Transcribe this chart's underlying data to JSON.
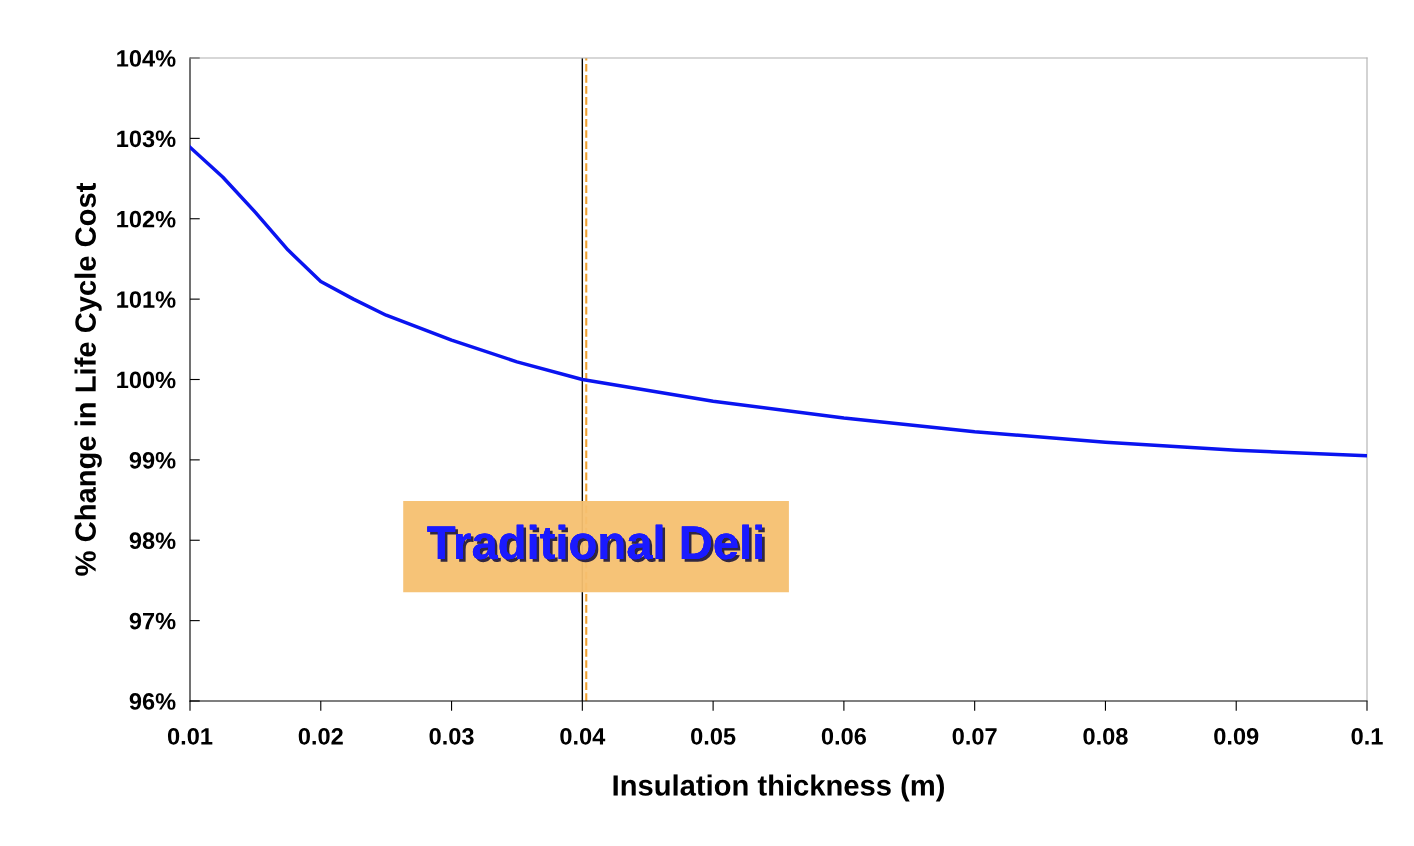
{
  "chart_data": {
    "type": "line",
    "xlabel": "Insulation thickness (m)",
    "ylabel": "% Change in Life Cycle Cost",
    "x": [
      0.01,
      0.0125,
      0.015,
      0.0175,
      0.02,
      0.0225,
      0.025,
      0.03,
      0.035,
      0.04,
      0.05,
      0.06,
      0.07,
      0.08,
      0.09,
      0.1
    ],
    "series": [
      {
        "color": "#0a14f0",
        "values": [
          102.89,
          102.52,
          102.08,
          101.61,
          101.22,
          101.0,
          100.8,
          100.49,
          100.22,
          100.0,
          99.73,
          99.52,
          99.35,
          99.22,
          99.12,
          99.05
        ]
      }
    ],
    "xlim": [
      0.01,
      0.1
    ],
    "xticks": [
      0.01,
      0.02,
      0.03,
      0.04,
      0.05,
      0.06,
      0.07,
      0.08,
      0.09,
      0.1
    ],
    "ylim": [
      96,
      104
    ],
    "yticks": [
      {
        "value": 96,
        "label": "96%"
      },
      {
        "value": 97,
        "label": "97%"
      },
      {
        "value": 98,
        "label": "98%"
      },
      {
        "value": 99,
        "label": "99%"
      },
      {
        "value": 100,
        "label": "100%"
      },
      {
        "value": 101,
        "label": "101%"
      },
      {
        "value": 102,
        "label": "102%"
      },
      {
        "value": 103,
        "label": "103%"
      },
      {
        "value": 104,
        "label": "104%"
      }
    ],
    "ref_lines": [
      {
        "axis": "x",
        "value": 0.04,
        "color": "#000000",
        "line_style": "solid"
      },
      {
        "axis": "x",
        "value": 0.0403,
        "color": "#f0a030",
        "line_style": "dashed"
      }
    ],
    "annotations": [
      "Traditional Deli"
    ],
    "grid": false,
    "legend": false,
    "marker": "none",
    "line_style": "solid"
  }
}
